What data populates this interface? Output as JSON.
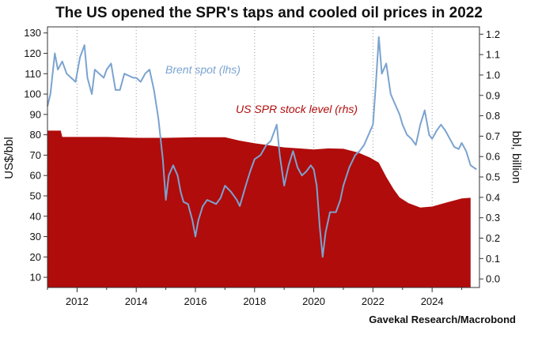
{
  "chart_data": {
    "type": "area",
    "title": "The US opened the SPR's taps and cooled oil prices in 2022",
    "source": "Gavekal Research/Macrobond",
    "ylabel_left": "US$/bbl",
    "ylabel_right": "bbl, billion",
    "xlim": [
      2011.0,
      2025.6
    ],
    "ylim_left": [
      5,
      133
    ],
    "ylim_right": [
      -0.042,
      1.236
    ],
    "x_ticks": [
      2012,
      2014,
      2016,
      2018,
      2020,
      2022,
      2024
    ],
    "x_tick_labels": [
      "2012",
      "2014",
      "2016",
      "2018",
      "2020",
      "2022",
      "2024"
    ],
    "y_ticks_left": [
      10,
      20,
      30,
      40,
      50,
      60,
      70,
      80,
      90,
      100,
      110,
      120,
      130
    ],
    "y_tick_labels_left": [
      "10",
      "20",
      "30",
      "40",
      "50",
      "60",
      "70",
      "80",
      "90",
      "100",
      "110",
      "120",
      "130"
    ],
    "y_ticks_right": [
      0.0,
      0.1,
      0.2,
      0.3,
      0.4,
      0.5,
      0.6,
      0.7,
      0.8,
      0.9,
      1.0,
      1.1,
      1.2
    ],
    "y_tick_labels_right": [
      "0.0",
      "0.1",
      "0.2",
      "0.3",
      "0.4",
      "0.5",
      "0.6",
      "0.7",
      "0.8",
      "0.9",
      "1.0",
      "1.1",
      "1.2"
    ],
    "grid": "vertical dotted",
    "colors": {
      "brent": "#7ba3cf",
      "spr": "#b00c0c",
      "brent_label": "#7ba3cf",
      "spr_label": "#b00c0c"
    },
    "series": [
      {
        "name": "Brent spot (lhs)",
        "axis": "left",
        "x": [
          2011.0,
          2011.1,
          2011.25,
          2011.35,
          2011.5,
          2011.65,
          2011.8,
          2011.95,
          2012.1,
          2012.25,
          2012.35,
          2012.5,
          2012.6,
          2012.75,
          2012.9,
          2013.0,
          2013.15,
          2013.3,
          2013.45,
          2013.6,
          2013.75,
          2013.9,
          2014.0,
          2014.15,
          2014.3,
          2014.45,
          2014.6,
          2014.75,
          2014.9,
          2015.0,
          2015.1,
          2015.25,
          2015.4,
          2015.5,
          2015.6,
          2015.75,
          2015.9,
          2016.0,
          2016.1,
          2016.25,
          2016.4,
          2016.55,
          2016.7,
          2016.85,
          2017.0,
          2017.2,
          2017.4,
          2017.5,
          2017.7,
          2017.85,
          2018.0,
          2018.2,
          2018.4,
          2018.55,
          2018.75,
          2018.85,
          2019.0,
          2019.15,
          2019.3,
          2019.45,
          2019.6,
          2019.75,
          2019.9,
          2020.0,
          2020.1,
          2020.2,
          2020.3,
          2020.4,
          2020.55,
          2020.75,
          2020.9,
          2021.0,
          2021.2,
          2021.4,
          2021.55,
          2021.7,
          2021.85,
          2022.0,
          2022.1,
          2022.2,
          2022.3,
          2022.45,
          2022.6,
          2022.75,
          2022.9,
          2023.0,
          2023.15,
          2023.3,
          2023.45,
          2023.6,
          2023.75,
          2023.9,
          2024.0,
          2024.15,
          2024.3,
          2024.45,
          2024.6,
          2024.75,
          2024.9,
          2025.0,
          2025.15,
          2025.3,
          2025.5
        ],
        "values": [
          94,
          100,
          120,
          112,
          116,
          110,
          108,
          106,
          118,
          124,
          108,
          100,
          112,
          110,
          108,
          112,
          115,
          102,
          102,
          110,
          109,
          108,
          108,
          106,
          110,
          112,
          102,
          88,
          68,
          48,
          60,
          65,
          60,
          52,
          47,
          46,
          38,
          30,
          38,
          45,
          48,
          47,
          46,
          49,
          55,
          52,
          48,
          45,
          55,
          62,
          68,
          70,
          75,
          77,
          85,
          70,
          55,
          65,
          72,
          64,
          60,
          62,
          65,
          63,
          55,
          35,
          20,
          32,
          42,
          42,
          48,
          55,
          64,
          70,
          72,
          75,
          80,
          85,
          105,
          128,
          110,
          115,
          100,
          95,
          90,
          85,
          80,
          78,
          75,
          85,
          92,
          80,
          78,
          82,
          85,
          82,
          78,
          74,
          73,
          76,
          72,
          65,
          63
        ]
      },
      {
        "name": "US SPR stock level (rhs)",
        "axis": "right",
        "x": [
          2011.0,
          2011.45,
          2011.5,
          2013.0,
          2014.0,
          2015.0,
          2016.0,
          2017.0,
          2017.5,
          2018.0,
          2019.0,
          2019.5,
          2020.0,
          2020.5,
          2021.0,
          2021.5,
          2021.9,
          2022.2,
          2022.45,
          2022.7,
          2022.9,
          2023.2,
          2023.6,
          2024.0,
          2024.5,
          2025.0,
          2025.3
        ],
        "values": [
          0.727,
          0.727,
          0.696,
          0.696,
          0.692,
          0.692,
          0.695,
          0.695,
          0.678,
          0.665,
          0.645,
          0.64,
          0.635,
          0.64,
          0.638,
          0.62,
          0.595,
          0.57,
          0.5,
          0.44,
          0.4,
          0.372,
          0.35,
          0.355,
          0.375,
          0.395,
          0.398
        ]
      }
    ],
    "annotations": [
      {
        "text": "Brent spot (lhs)",
        "series": "Brent spot (lhs)"
      },
      {
        "text": "US SPR stock level (rhs)",
        "series": "US SPR stock level (rhs)"
      }
    ]
  }
}
